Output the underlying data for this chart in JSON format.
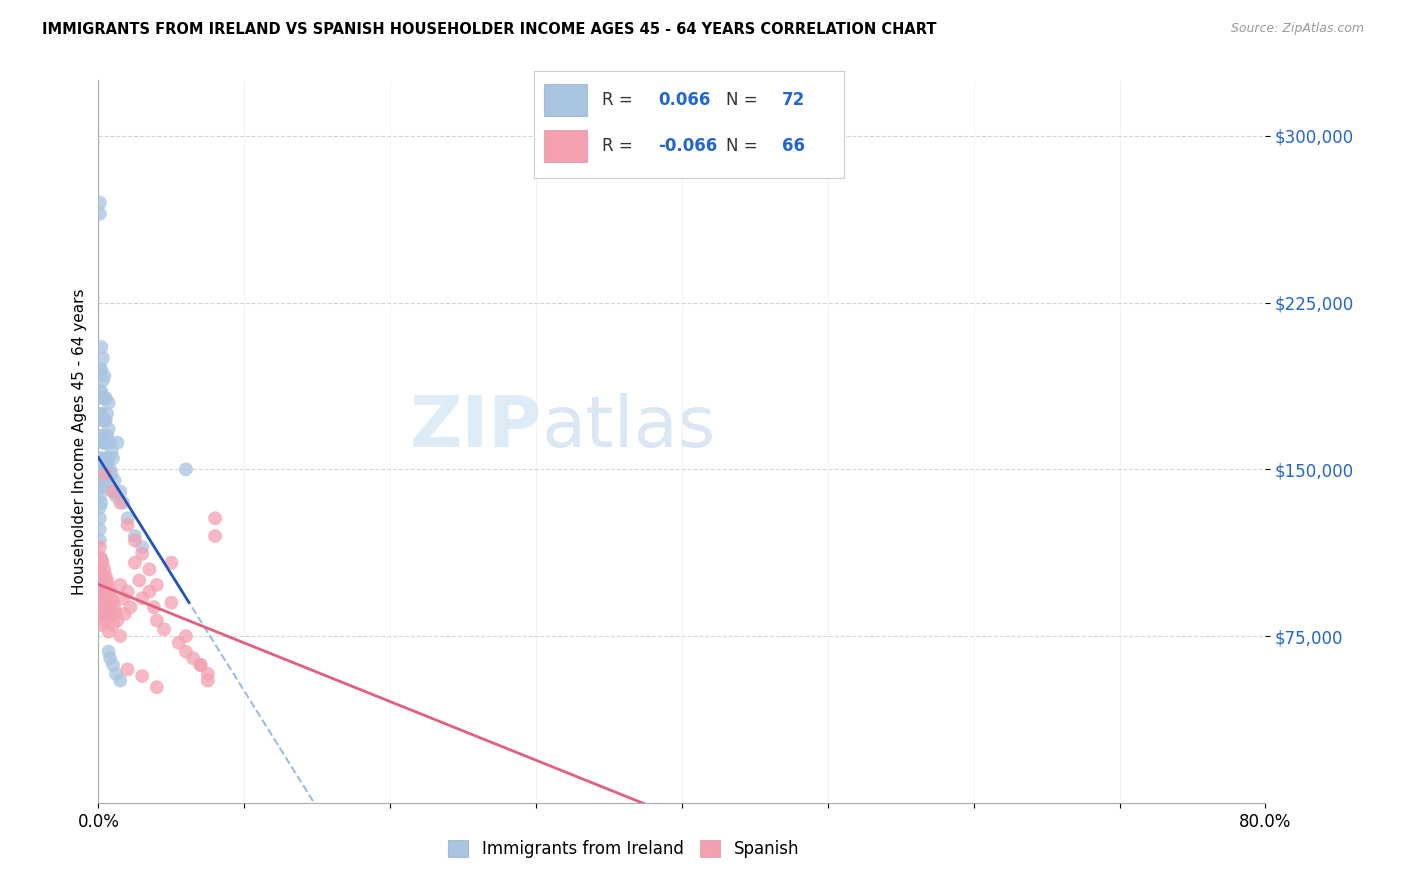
{
  "title": "IMMIGRANTS FROM IRELAND VS SPANISH HOUSEHOLDER INCOME AGES 45 - 64 YEARS CORRELATION CHART",
  "source": "Source: ZipAtlas.com",
  "ylabel": "Householder Income Ages 45 - 64 years",
  "ytick_labels": [
    "$75,000",
    "$150,000",
    "$225,000",
    "$300,000"
  ],
  "ytick_values": [
    75000,
    150000,
    225000,
    300000
  ],
  "xlim": [
    0.0,
    0.8
  ],
  "ylim": [
    0,
    325000
  ],
  "ireland_color": "#a8c4e0",
  "spanish_color": "#f4a0b0",
  "ireland_solid_color": "#2255bb",
  "spanish_solid_color": "#e06080",
  "ireland_dash_color": "#88aadd",
  "watermark_zip": "ZIP",
  "watermark_atlas": "atlas",
  "ireland_x": [
    0.001,
    0.001,
    0.001,
    0.001,
    0.001,
    0.001,
    0.001,
    0.001,
    0.001,
    0.001,
    0.001,
    0.001,
    0.001,
    0.001,
    0.001,
    0.002,
    0.002,
    0.002,
    0.002,
    0.002,
    0.002,
    0.002,
    0.002,
    0.003,
    0.003,
    0.003,
    0.003,
    0.003,
    0.003,
    0.003,
    0.004,
    0.004,
    0.004,
    0.004,
    0.004,
    0.005,
    0.005,
    0.005,
    0.005,
    0.006,
    0.006,
    0.006,
    0.006,
    0.007,
    0.007,
    0.007,
    0.008,
    0.008,
    0.009,
    0.009,
    0.01,
    0.01,
    0.011,
    0.012,
    0.013,
    0.015,
    0.017,
    0.02,
    0.025,
    0.03,
    0.001,
    0.002,
    0.003,
    0.004,
    0.005,
    0.006,
    0.007,
    0.008,
    0.01,
    0.012,
    0.015,
    0.06
  ],
  "ireland_y": [
    270000,
    265000,
    195000,
    185000,
    175000,
    165000,
    155000,
    148000,
    142000,
    138000,
    133000,
    128000,
    123000,
    118000,
    110000,
    205000,
    195000,
    185000,
    175000,
    165000,
    155000,
    145000,
    135000,
    200000,
    190000,
    182000,
    172000,
    162000,
    152000,
    142000,
    192000,
    182000,
    172000,
    162000,
    152000,
    182000,
    172000,
    162000,
    152000,
    175000,
    165000,
    155000,
    145000,
    180000,
    168000,
    155000,
    162000,
    150000,
    158000,
    148000,
    155000,
    140000,
    145000,
    138000,
    162000,
    140000,
    135000,
    128000,
    120000,
    115000,
    100000,
    100000,
    95000,
    90000,
    88000,
    85000,
    68000,
    65000,
    62000,
    58000,
    55000,
    150000
  ],
  "spanish_x": [
    0.001,
    0.001,
    0.001,
    0.001,
    0.002,
    0.002,
    0.002,
    0.002,
    0.003,
    0.003,
    0.003,
    0.004,
    0.004,
    0.004,
    0.005,
    0.005,
    0.005,
    0.006,
    0.006,
    0.007,
    0.007,
    0.007,
    0.008,
    0.008,
    0.009,
    0.01,
    0.01,
    0.011,
    0.012,
    0.013,
    0.015,
    0.015,
    0.017,
    0.018,
    0.02,
    0.022,
    0.025,
    0.028,
    0.03,
    0.035,
    0.038,
    0.04,
    0.045,
    0.05,
    0.055,
    0.06,
    0.065,
    0.07,
    0.075,
    0.08,
    0.005,
    0.01,
    0.015,
    0.02,
    0.025,
    0.03,
    0.035,
    0.04,
    0.05,
    0.06,
    0.07,
    0.075,
    0.08,
    0.02,
    0.03,
    0.04
  ],
  "spanish_y": [
    115000,
    105000,
    95000,
    85000,
    110000,
    100000,
    90000,
    80000,
    108000,
    98000,
    88000,
    105000,
    95000,
    85000,
    102000,
    92000,
    82000,
    100000,
    90000,
    97000,
    87000,
    77000,
    95000,
    85000,
    92000,
    90000,
    80000,
    88000,
    85000,
    82000,
    98000,
    75000,
    92000,
    85000,
    95000,
    88000,
    108000,
    100000,
    92000,
    95000,
    88000,
    82000,
    78000,
    108000,
    72000,
    68000,
    65000,
    62000,
    58000,
    128000,
    148000,
    140000,
    135000,
    125000,
    118000,
    112000,
    105000,
    98000,
    90000,
    75000,
    62000,
    55000,
    120000,
    60000,
    57000,
    52000
  ]
}
